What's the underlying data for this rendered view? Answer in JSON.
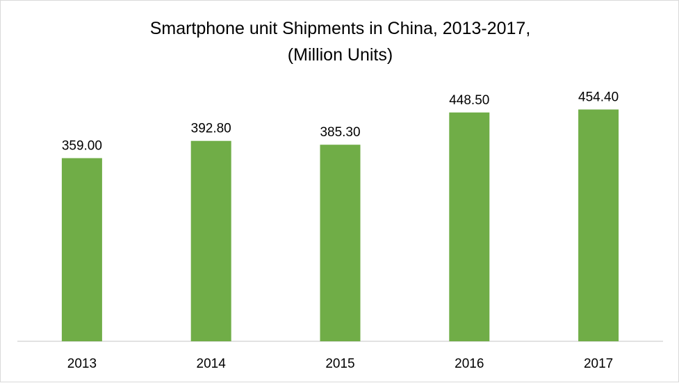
{
  "chart_data": {
    "type": "bar",
    "title_line1": "Smartphone unit Shipments in China, 2013-2017,",
    "title_line2": "(Million Units)",
    "categories": [
      "2013",
      "2014",
      "2015",
      "2016",
      "2017"
    ],
    "values": [
      359.0,
      392.8,
      385.3,
      448.5,
      454.4
    ],
    "value_labels": [
      "359.00",
      "392.80",
      "385.30",
      "448.50",
      "454.40"
    ],
    "ylim": [
      0,
      500
    ],
    "grid": false,
    "legend": "none",
    "colors": {
      "bar": "#70ad47",
      "axis": "#d9d9d9",
      "text": "#000000"
    }
  }
}
